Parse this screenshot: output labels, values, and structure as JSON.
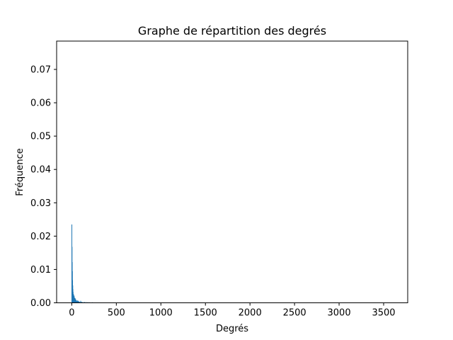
{
  "chart_data": {
    "type": "bar",
    "title": "Graphe de répartition des degrés",
    "xlabel": "Degrés",
    "ylabel": "Fréquence",
    "xlim": [
      -170,
      3770
    ],
    "ylim": [
      0,
      0.0785
    ],
    "x_ticks": [
      0,
      500,
      1000,
      1500,
      2000,
      2500,
      3000,
      3500
    ],
    "x_tick_labels": [
      "0",
      "500",
      "1000",
      "1500",
      "2000",
      "2500",
      "3000",
      "3500"
    ],
    "y_ticks": [
      0.0,
      0.01,
      0.02,
      0.03,
      0.04,
      0.05,
      0.06,
      0.07
    ],
    "y_tick_labels": [
      "0.00",
      "0.01",
      "0.02",
      "0.03",
      "0.04",
      "0.05",
      "0.06",
      "0.07"
    ],
    "grid": false,
    "color": "#1f77b4",
    "bar_width": 4,
    "series": [
      {
        "x": [
          1,
          3,
          5,
          7,
          9,
          11,
          13,
          15,
          17,
          19,
          21,
          23,
          25,
          27,
          29,
          31,
          33,
          35,
          37,
          40,
          43,
          46,
          50,
          55,
          60,
          65,
          70,
          75,
          80,
          90,
          100,
          110,
          120,
          140,
          160,
          180,
          200,
          230,
          260,
          300,
          350,
          400,
          450,
          520,
          600
        ],
        "values": [
          0.0235,
          0.0168,
          0.0122,
          0.0095,
          0.0068,
          0.0052,
          0.0041,
          0.0033,
          0.0027,
          0.0022,
          0.0025,
          0.0019,
          0.0017,
          0.0021,
          0.0014,
          0.0012,
          0.0015,
          0.0011,
          0.0009,
          0.0013,
          0.0008,
          0.0007,
          0.0009,
          0.0006,
          0.0005,
          0.0007,
          0.0004,
          0.0006,
          0.0004,
          0.0003,
          0.0006,
          0.0003,
          0.0002,
          0.0003,
          0.0002,
          0.0002,
          0.00015,
          0.00015,
          0.0001,
          0.0001,
          8e-05,
          6e-05,
          5e-05,
          4e-05,
          3e-05
        ]
      }
    ]
  }
}
